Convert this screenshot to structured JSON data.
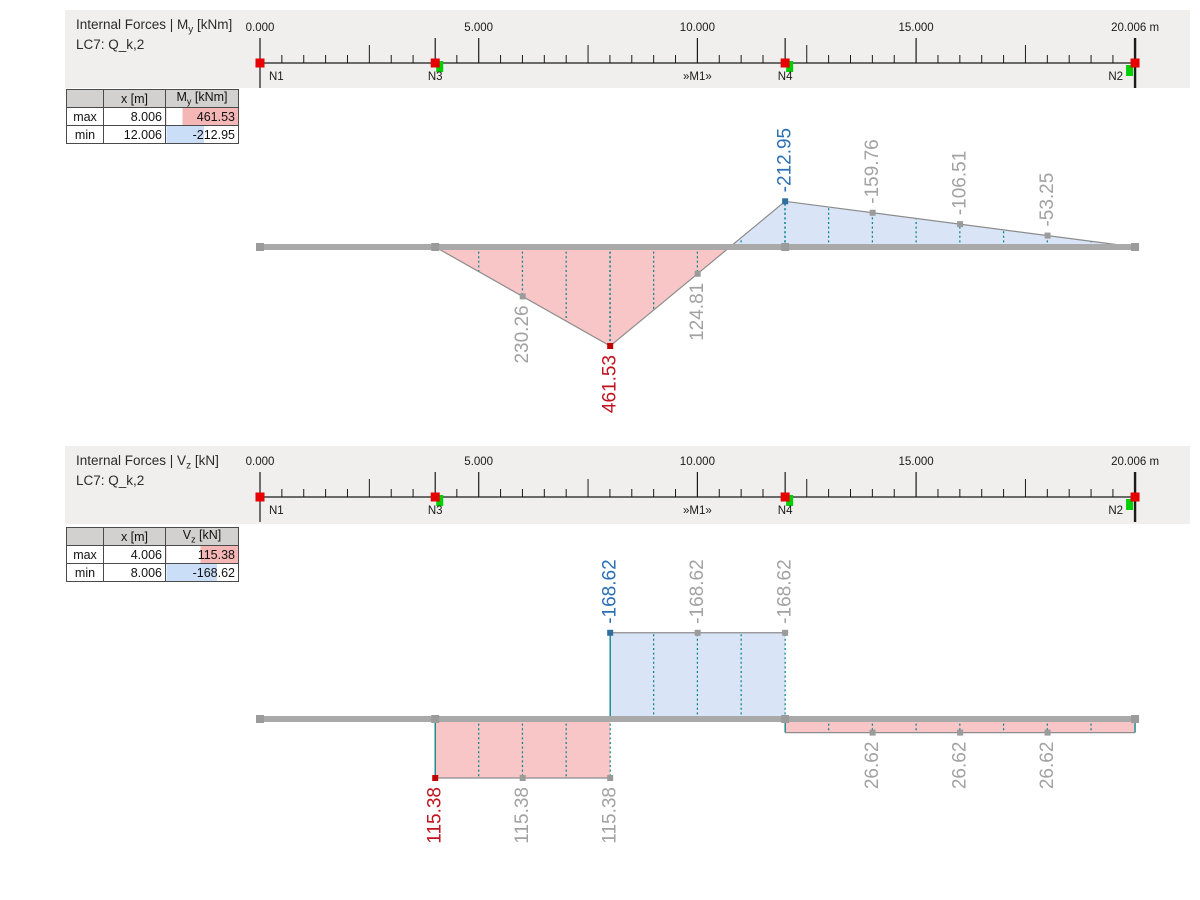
{
  "page": {
    "background": "#ffffff",
    "band_background": "#f0efed"
  },
  "colors": {
    "beam": "#a9a9a9",
    "outline": "#8c8c8c",
    "fill_positive": "#f8c6c6",
    "fill_negative": "#d9e4f7",
    "teal_distribution": "#00808a",
    "marker_gray": "#9b9b9b",
    "marker_max": "#c00000",
    "marker_min": "#2f6f9f",
    "label_gray": "#a2a2a2",
    "label_max": "#c11220",
    "label_min": "#2b6fb4",
    "node_red": "#e60000",
    "node_green": "#00d000",
    "ruler_ink": "#1a1a1a",
    "highlight_pink": "#f5b6b6",
    "highlight_blue": "#cbdef7"
  },
  "ruler": {
    "majors": [
      {
        "m": 0,
        "label": "0.000"
      },
      {
        "m": 5,
        "label": "5.000"
      },
      {
        "m": 10,
        "label": "10.000"
      },
      {
        "m": 15,
        "label": "15.000"
      },
      {
        "m": 20.006,
        "label": "20.006 m"
      }
    ],
    "mediums": [
      2.5,
      7.5,
      12.5,
      17.5
    ],
    "minor_step": 0.5,
    "nodes": [
      {
        "name": "N1",
        "m": 0,
        "red": true,
        "green": false,
        "label_side": "right",
        "down_line": true
      },
      {
        "name": "N3",
        "m": 4.006,
        "red": true,
        "green": true,
        "tick": true
      },
      {
        "name": "»M1»",
        "m": 10,
        "red": false,
        "green": false,
        "label_only": true
      },
      {
        "name": "N4",
        "m": 12.006,
        "red": true,
        "green": true,
        "tick": true
      },
      {
        "name": "N2",
        "m": 20.006,
        "red": true,
        "green": true,
        "green_side": "left",
        "label_side": "left",
        "end_line": true
      }
    ]
  },
  "panels": [
    {
      "title_prefix": "Internal Forces | M",
      "title_sub": "y",
      "title_unit": " [kNm]",
      "loadcase": "LC7: Q_k,2",
      "table": {
        "corner": "",
        "x_header": "x [m]",
        "value_header_prefix": "M",
        "value_header_sub": "y",
        "value_header_unit": " [kNm]",
        "rows": [
          {
            "label": "max",
            "x": "8.006",
            "value": "461.53",
            "bar": {
              "align": "right",
              "pct": 78,
              "color": "#f5b6b6"
            }
          },
          {
            "label": "min",
            "x": "12.006",
            "value": "-212.95",
            "bar": {
              "align": "left",
              "pct": 52,
              "color": "#cbdef7"
            }
          }
        ]
      }
    },
    {
      "title_prefix": "Internal Forces | V",
      "title_sub": "z",
      "title_unit": " [kN]",
      "loadcase": "LC7: Q_k,2",
      "table": {
        "corner": "",
        "x_header": "x [m]",
        "value_header_prefix": "V",
        "value_header_sub": "z",
        "value_header_unit": " [kN]",
        "rows": [
          {
            "label": "max",
            "x": "4.006",
            "value": "115.38",
            "bar": {
              "align": "right",
              "pct": 53,
              "color": "#f5b6b6"
            }
          },
          {
            "label": "min",
            "x": "8.006",
            "value": "-168.62",
            "bar": {
              "align": "left",
              "pct": 70,
              "color": "#cbdef7"
            }
          }
        ]
      }
    }
  ],
  "chart_data": [
    {
      "type": "area",
      "quantity": "My",
      "units": "kNm",
      "load_case": "LC7: Q_k,2",
      "x_units": "m",
      "x_range": [
        0,
        20.006
      ],
      "points": [
        [
          0,
          0
        ],
        [
          4.006,
          0
        ],
        [
          8.006,
          461.53
        ],
        [
          12.006,
          -212.95
        ],
        [
          20.006,
          0
        ]
      ],
      "labels": [
        {
          "x": 6.006,
          "v": 230.26,
          "text": "230.26",
          "role": "gray"
        },
        {
          "x": 8.006,
          "v": 461.53,
          "text": "461.53",
          "role": "max"
        },
        {
          "x": 10.006,
          "v": 124.81,
          "text": "124.81",
          "role": "gray"
        },
        {
          "x": 12.006,
          "v": -212.95,
          "text": "-212.95",
          "role": "min"
        },
        {
          "x": 14.006,
          "v": -159.76,
          "text": "-159.76",
          "role": "gray"
        },
        {
          "x": 16.006,
          "v": -106.51,
          "text": "-106.51",
          "role": "gray"
        },
        {
          "x": 18.006,
          "v": -53.25,
          "text": "-53.25",
          "role": "gray"
        }
      ],
      "max": {
        "x": 8.006,
        "value": 461.53
      },
      "min": {
        "x": 12.006,
        "value": -212.95
      },
      "beam_nodes": [
        0,
        4.006,
        12.006,
        20.006
      ],
      "sign_convention": "positive plotted below beam"
    },
    {
      "type": "step",
      "quantity": "Vz",
      "units": "kN",
      "load_case": "LC7: Q_k,2",
      "x_units": "m",
      "x_range": [
        0,
        20.006
      ],
      "segments": [
        {
          "from": 0,
          "to": 4.006,
          "v": 0
        },
        {
          "from": 4.006,
          "to": 8.006,
          "v": 115.38
        },
        {
          "from": 8.006,
          "to": 12.006,
          "v": -168.62
        },
        {
          "from": 12.006,
          "to": 20.006,
          "v": 26.62
        }
      ],
      "labels": [
        {
          "x": 4.006,
          "v": 115.38,
          "text": "115.38",
          "role": "max"
        },
        {
          "x": 6.006,
          "v": 115.38,
          "text": "115.38",
          "role": "gray"
        },
        {
          "x": 8.006,
          "v": 115.38,
          "text": "115.38",
          "role": "gray"
        },
        {
          "x": 8.006,
          "v": -168.62,
          "text": "-168.62",
          "role": "min"
        },
        {
          "x": 10.006,
          "v": -168.62,
          "text": "-168.62",
          "role": "gray"
        },
        {
          "x": 12.006,
          "v": -168.62,
          "text": "-168.62",
          "role": "gray"
        },
        {
          "x": 14.006,
          "v": 26.62,
          "text": "26.62",
          "role": "gray"
        },
        {
          "x": 16.006,
          "v": 26.62,
          "text": "26.62",
          "role": "gray"
        },
        {
          "x": 18.006,
          "v": 26.62,
          "text": "26.62",
          "role": "gray"
        }
      ],
      "max": {
        "x": 4.006,
        "value": 115.38
      },
      "min": {
        "x": 8.006,
        "value": -168.62
      },
      "beam_nodes": [
        0,
        4.006,
        12.006,
        20.006
      ],
      "sign_convention": "positive plotted below beam"
    }
  ]
}
